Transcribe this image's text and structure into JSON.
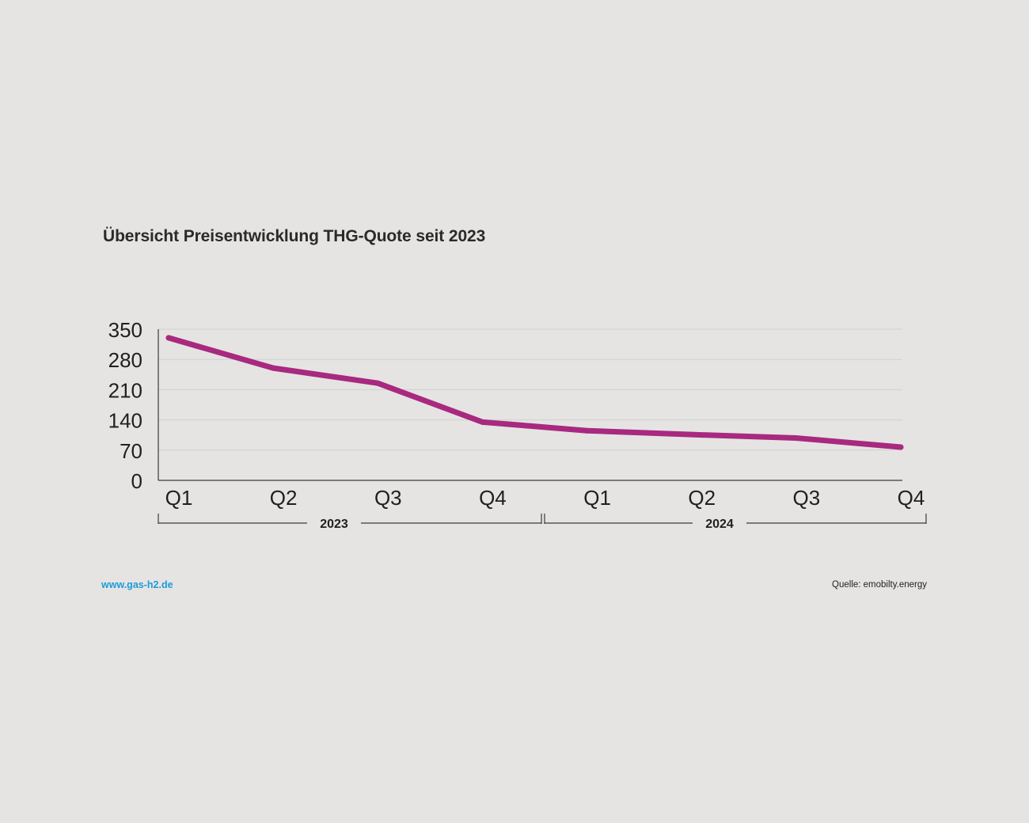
{
  "chart_data": {
    "type": "line",
    "title": "Übersicht Preisentwicklung THG-Quote seit 2023",
    "xlabel": "",
    "ylabel": "",
    "categories": [
      "Q1",
      "Q2",
      "Q3",
      "Q4",
      "Q1",
      "Q2",
      "Q3",
      "Q4"
    ],
    "groups": [
      {
        "label": "2023",
        "from": 0,
        "to": 3
      },
      {
        "label": "2024",
        "from": 4,
        "to": 7
      }
    ],
    "series": [
      {
        "name": "THG-Quote",
        "values": [
          330,
          260,
          225,
          135,
          115,
          106,
          98,
          77
        ]
      }
    ],
    "yticks": [
      0,
      70,
      140,
      210,
      280,
      350
    ],
    "ylim": [
      0,
      350
    ],
    "grid": true,
    "line_color": "#a8297f"
  },
  "footer": {
    "website": "www.gas-h2.de",
    "source": "Quelle: emobilty.energy"
  }
}
